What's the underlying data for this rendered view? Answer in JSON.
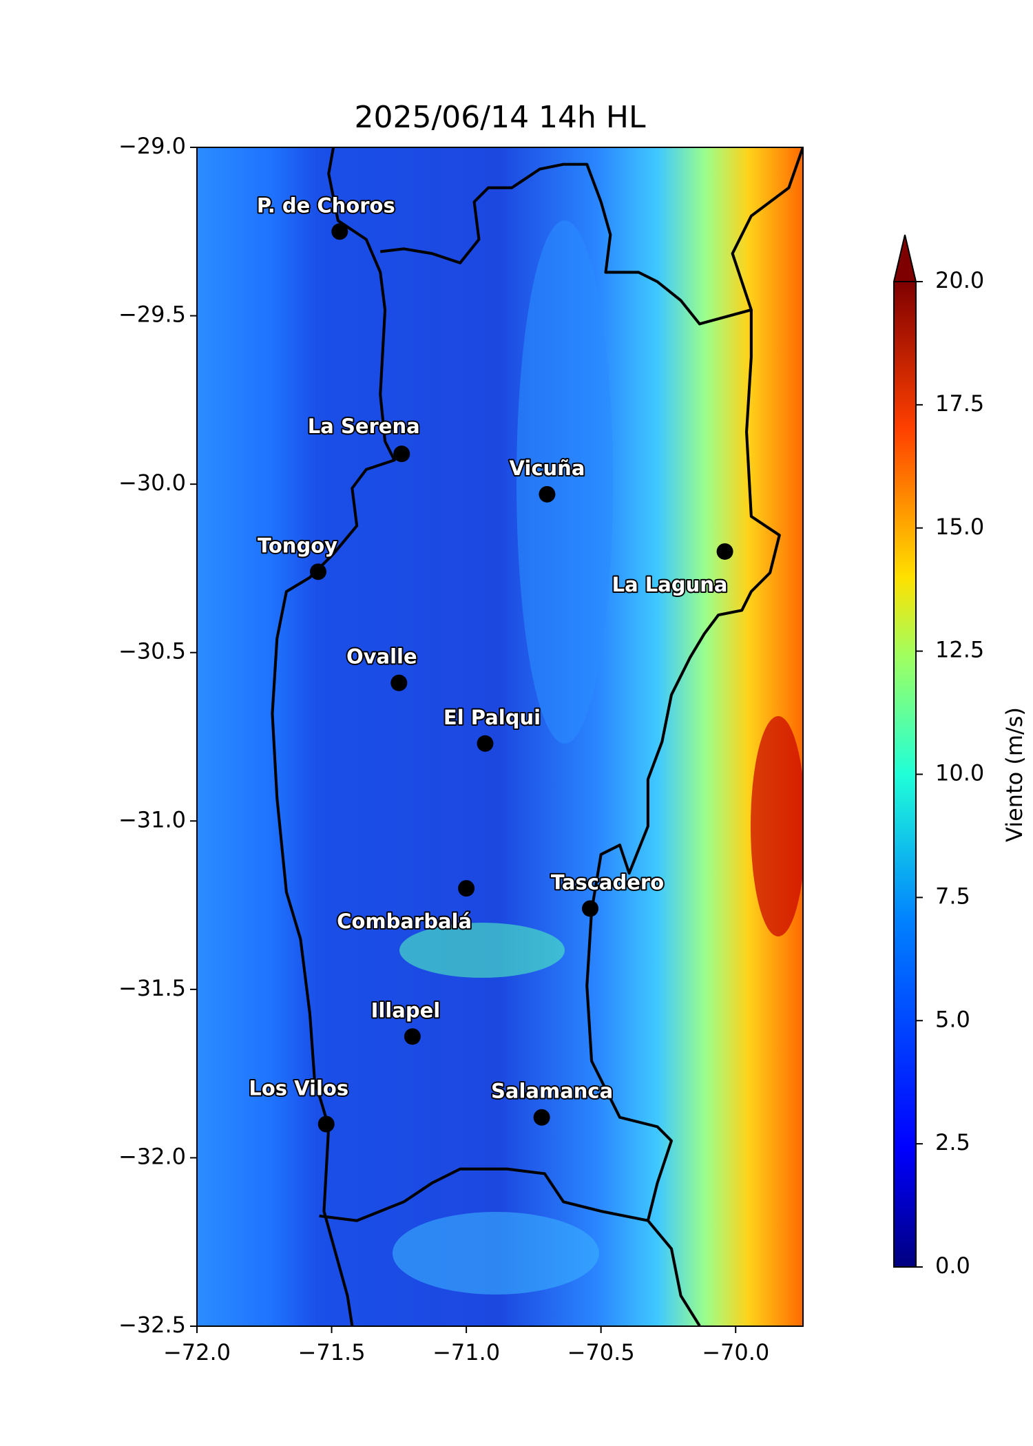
{
  "title": "2025/06/14 14h HL",
  "map": {
    "xlim": [
      -72.0,
      -69.75
    ],
    "ylim": [
      -32.5,
      -29.0
    ],
    "xticks": [
      {
        "value": -72.0,
        "label": "−72.0"
      },
      {
        "value": -71.5,
        "label": "−71.5"
      },
      {
        "value": -71.0,
        "label": "−71.0"
      },
      {
        "value": -70.5,
        "label": "−70.5"
      },
      {
        "value": -70.0,
        "label": "−70.0"
      }
    ],
    "yticks": [
      {
        "value": -29.0,
        "label": "−29.0"
      },
      {
        "value": -29.5,
        "label": "−29.5"
      },
      {
        "value": -30.0,
        "label": "−30.0"
      },
      {
        "value": -30.5,
        "label": "−30.5"
      },
      {
        "value": -31.0,
        "label": "−31.0"
      },
      {
        "value": -31.5,
        "label": "−31.5"
      },
      {
        "value": -32.0,
        "label": "−32.0"
      },
      {
        "value": -32.5,
        "label": "−32.5"
      }
    ],
    "cities": [
      {
        "name": "P. de Choros",
        "lon": -71.47,
        "lat": -29.25
      },
      {
        "name": "La Serena",
        "lon": -71.24,
        "lat": -29.91
      },
      {
        "name": "Vicuña",
        "lon": -70.7,
        "lat": -30.03
      },
      {
        "name": "Tongoy",
        "lon": -71.55,
        "lat": -30.26
      },
      {
        "name": "La Laguna",
        "lon": -70.04,
        "lat": -30.2
      },
      {
        "name": "Ovalle",
        "lon": -71.25,
        "lat": -30.59
      },
      {
        "name": "El Palqui",
        "lon": -70.93,
        "lat": -30.77
      },
      {
        "name": "Combarbalá",
        "lon": -71.0,
        "lat": -31.2
      },
      {
        "name": "Tascadero",
        "lon": -70.54,
        "lat": -31.26
      },
      {
        "name": "Illapel",
        "lon": -71.2,
        "lat": -31.64
      },
      {
        "name": "Los Vilos",
        "lon": -71.52,
        "lat": -31.9
      },
      {
        "name": "Salamanca",
        "lon": -70.72,
        "lat": -31.88
      }
    ]
  },
  "colorbar": {
    "label": "Viento (m/s)",
    "lim": [
      0.0,
      20.0
    ],
    "ticks": [
      {
        "value": 0.0,
        "label": "0.0"
      },
      {
        "value": 2.5,
        "label": "2.5"
      },
      {
        "value": 5.0,
        "label": "5.0"
      },
      {
        "value": 7.5,
        "label": "7.5"
      },
      {
        "value": 10.0,
        "label": "10.0"
      },
      {
        "value": 12.5,
        "label": "12.5"
      },
      {
        "value": 15.0,
        "label": "15.0"
      },
      {
        "value": 17.5,
        "label": "17.5"
      },
      {
        "value": 20.0,
        "label": "20.0"
      }
    ]
  }
}
